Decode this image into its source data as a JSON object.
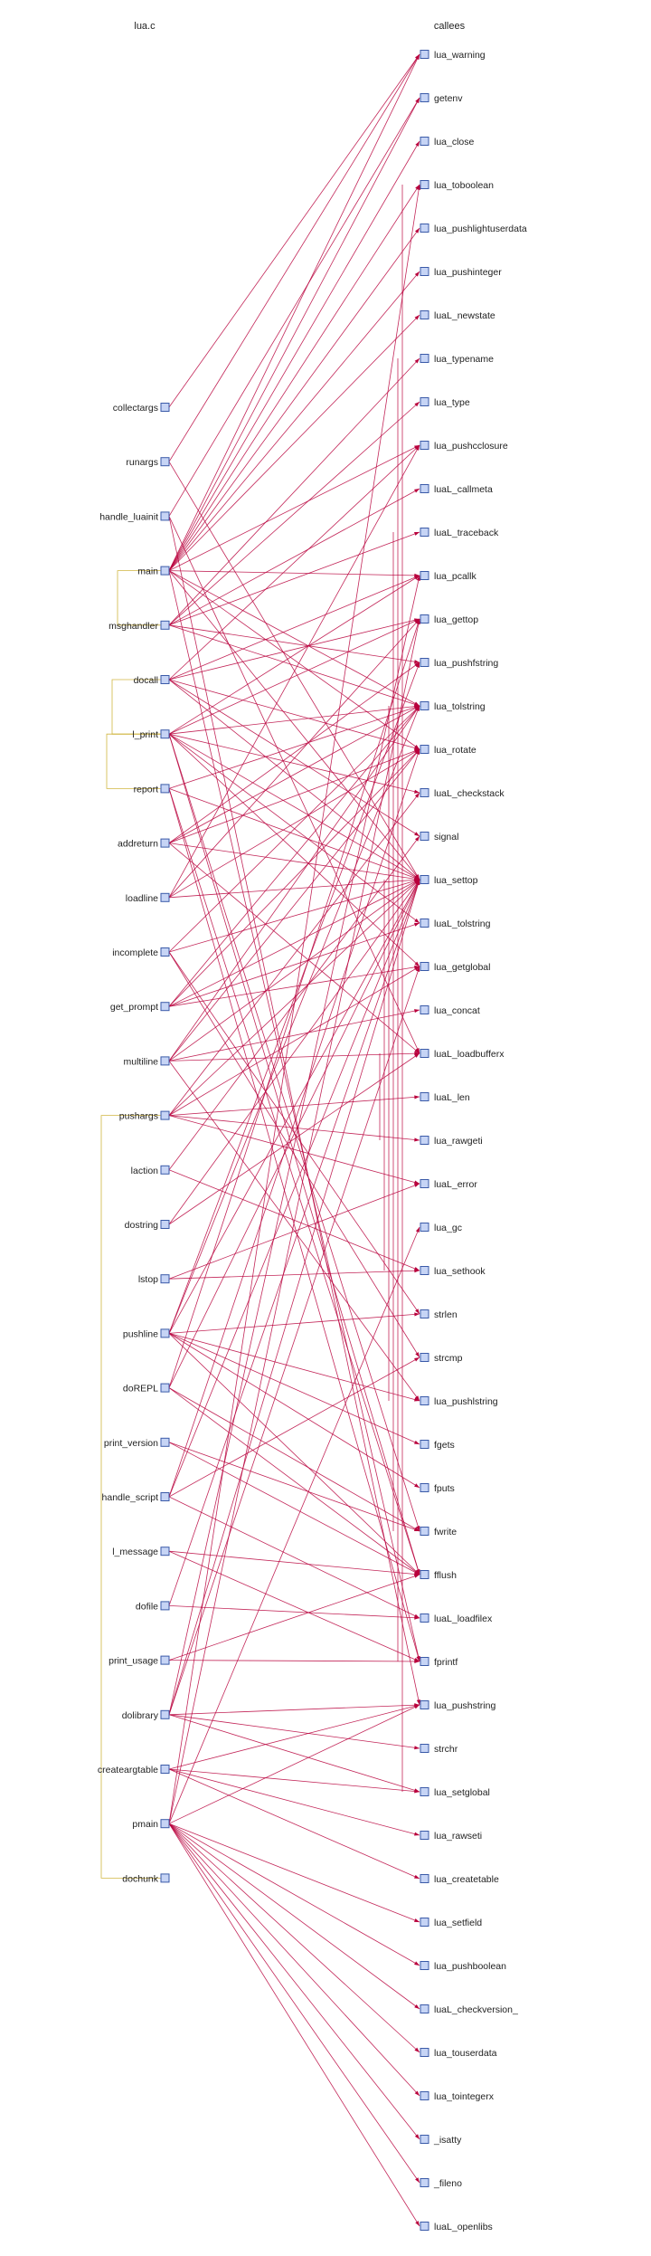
{
  "headers": {
    "left": "lua.c",
    "right": "callees"
  },
  "callers": [
    "collectargs",
    "runargs",
    "handle_luainit",
    "main",
    "msghandler",
    "docall",
    "l_print",
    "report",
    "addreturn",
    "loadline",
    "incomplete",
    "get_prompt",
    "multiline",
    "pushargs",
    "laction",
    "dostring",
    "lstop",
    "pushline",
    "doREPL",
    "print_version",
    "handle_script",
    "l_message",
    "dofile",
    "print_usage",
    "dolibrary",
    "createargtable",
    "pmain",
    "dochunk"
  ],
  "callees": [
    "lua_warning",
    "getenv",
    "lua_close",
    "lua_toboolean",
    "lua_pushlightuserdata",
    "lua_pushinteger",
    "luaL_newstate",
    "lua_typename",
    "lua_type",
    "lua_pushcclosure",
    "luaL_callmeta",
    "luaL_traceback",
    "lua_pcallk",
    "lua_gettop",
    "lua_pushfstring",
    "lua_tolstring",
    "lua_rotate",
    "luaL_checkstack",
    "signal",
    "lua_settop",
    "luaL_tolstring",
    "lua_getglobal",
    "lua_concat",
    "luaL_loadbufferx",
    "luaL_len",
    "lua_rawgeti",
    "luaL_error",
    "lua_gc",
    "lua_sethook",
    "strlen",
    "strcmp",
    "lua_pushlstring",
    "fgets",
    "fputs",
    "fwrite",
    "fflush",
    "luaL_loadfilex",
    "fprintf",
    "lua_pushstring",
    "strchr",
    "lua_setglobal",
    "lua_rawseti",
    "lua_createtable",
    "lua_setfield",
    "lua_pushboolean",
    "luaL_checkversion_",
    "lua_touserdata",
    "lua_tointegerx",
    "_isatty",
    "_fileno",
    "luaL_openlibs"
  ],
  "calls": [
    [
      "main",
      [
        "lua_warning",
        "getenv",
        "lua_close",
        "lua_toboolean",
        "lua_pushlightuserdata",
        "lua_pushinteger",
        "luaL_newstate",
        "lua_pushcclosure",
        "lua_pcallk",
        "lua_tolstring",
        "lua_rotate",
        "lua_settop",
        "fprintf"
      ]
    ],
    [
      "msghandler",
      [
        "lua_typename",
        "lua_type",
        "luaL_callmeta",
        "luaL_traceback",
        "lua_pushfstring",
        "lua_tolstring"
      ]
    ],
    [
      "docall",
      [
        "lua_pcallk",
        "lua_gettop",
        "lua_rotate",
        "lua_pushcclosure",
        "signal",
        "lua_settop"
      ]
    ],
    [
      "l_print",
      [
        "lua_gettop",
        "luaL_checkstack",
        "luaL_tolstring",
        "lua_getglobal",
        "lua_pcallk",
        "fwrite",
        "fflush",
        "lua_settop",
        "lua_tolstring"
      ]
    ],
    [
      "report",
      [
        "lua_tolstring",
        "lua_settop",
        "fprintf",
        "fflush"
      ]
    ],
    [
      "addreturn",
      [
        "lua_tolstring",
        "lua_pushfstring",
        "luaL_loadbufferx",
        "lua_rotate",
        "lua_settop"
      ]
    ],
    [
      "loadline",
      [
        "lua_settop",
        "lua_gettop",
        "lua_rotate",
        "lua_pushcclosure"
      ]
    ],
    [
      "incomplete",
      [
        "lua_tolstring",
        "lua_settop",
        "strlen",
        "strcmp"
      ]
    ],
    [
      "get_prompt",
      [
        "lua_getglobal",
        "lua_tolstring",
        "lua_settop",
        "luaL_tolstring",
        "lua_rotate"
      ]
    ],
    [
      "multiline",
      [
        "lua_tolstring",
        "luaL_loadbufferx",
        "lua_pushlstring",
        "lua_settop",
        "lua_rotate",
        "lua_concat"
      ]
    ],
    [
      "pushargs",
      [
        "lua_getglobal",
        "luaL_len",
        "lua_rawgeti",
        "luaL_error",
        "luaL_checkstack",
        "lua_settop"
      ]
    ],
    [
      "laction",
      [
        "lua_sethook",
        "signal"
      ]
    ],
    [
      "dostring",
      [
        "luaL_loadbufferx",
        "lua_settop"
      ]
    ],
    [
      "lstop",
      [
        "lua_sethook",
        "luaL_error"
      ]
    ],
    [
      "pushline",
      [
        "fgets",
        "fputs",
        "fflush",
        "strlen",
        "lua_pushlstring",
        "lua_pushfstring",
        "lua_settop",
        "lua_tolstring"
      ]
    ],
    [
      "doREPL",
      [
        "lua_settop",
        "lua_gettop",
        "fwrite",
        "fflush"
      ]
    ],
    [
      "print_version",
      [
        "fwrite",
        "fflush"
      ]
    ],
    [
      "handle_script",
      [
        "strcmp",
        "luaL_loadfilex",
        "lua_settop",
        "lua_rotate"
      ]
    ],
    [
      "l_message",
      [
        "fprintf",
        "fflush"
      ]
    ],
    [
      "dofile",
      [
        "luaL_loadfilex",
        "lua_settop"
      ]
    ],
    [
      "print_usage",
      [
        "fprintf",
        "fflush"
      ]
    ],
    [
      "dolibrary",
      [
        "lua_getglobal",
        "lua_pushstring",
        "lua_pcallk",
        "lua_setglobal",
        "strchr",
        "lua_settop"
      ]
    ],
    [
      "createargtable",
      [
        "lua_createtable",
        "lua_pushstring",
        "lua_rawseti",
        "lua_setglobal"
      ]
    ],
    [
      "pmain",
      [
        "lua_tointegerx",
        "lua_touserdata",
        "luaL_checkversion_",
        "lua_pushboolean",
        "lua_setfield",
        "luaL_openlibs",
        "lua_gc",
        "_isatty",
        "_fileno",
        "lua_pushstring",
        "lua_gettop",
        "lua_toboolean"
      ]
    ],
    [
      "handle_luainit",
      [
        "getenv",
        "luaL_loadbufferx",
        "lua_pushstring"
      ]
    ],
    [
      "collectargs",
      [
        "lua_warning"
      ]
    ],
    [
      "runargs",
      [
        "lua_warning",
        "lua_settop"
      ]
    ]
  ],
  "internal_calls": [
    [
      "main",
      "msghandler"
    ],
    [
      "docall",
      "l_print"
    ],
    [
      "l_print",
      "report"
    ],
    [
      "pushargs",
      "dochunk"
    ]
  ],
  "colors": {
    "edge": "#b8003c",
    "node_fill": "#c6d4f5",
    "node_stroke": "#3a5aa8",
    "internal_edge": "#c8a820"
  }
}
